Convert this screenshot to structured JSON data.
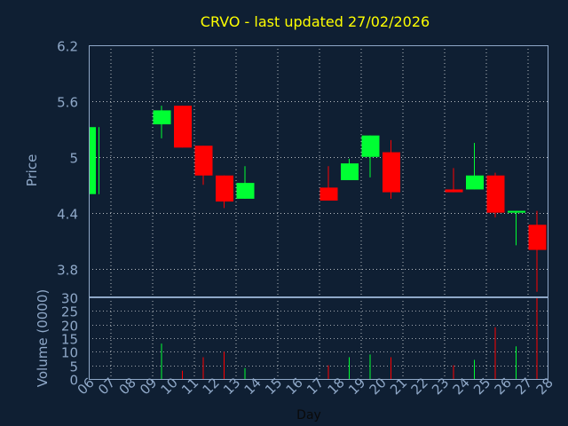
{
  "chart_data": {
    "type": "candlestick",
    "title": "CRVO - last updated 27/02/2026",
    "price_axis": {
      "label": "Price",
      "ylim": [
        3.5,
        6.2
      ],
      "ticks": [
        "6.2",
        "5.6",
        "5",
        "4.4",
        "3.8"
      ],
      "tick_values": [
        6.2,
        5.6,
        5.0,
        4.4,
        3.8
      ]
    },
    "volume_axis": {
      "label": "Volume (0000)",
      "ylim": [
        0,
        30
      ],
      "ticks": [
        "30",
        "25",
        "20",
        "15",
        "10",
        "5",
        "0"
      ],
      "tick_values": [
        30,
        25,
        20,
        15,
        10,
        5,
        0
      ]
    },
    "x_axis": {
      "label": "Day",
      "ticks": [
        "06",
        "07",
        "08",
        "09",
        "10",
        "11",
        "12",
        "13",
        "14",
        "15",
        "16",
        "17",
        "18",
        "19",
        "20",
        "21",
        "22",
        "23",
        "24",
        "25",
        "26",
        "27",
        "28"
      ]
    },
    "grid": true,
    "colors": {
      "background": "#0f1f33",
      "title": "#ffff00",
      "axis_text": "#8fa8c8",
      "up": "#00ff33",
      "down": "#ff0000",
      "grid": "#ffffff",
      "frame": "#8fa8c8"
    },
    "candles": [
      {
        "day": "06",
        "open": 4.6,
        "close": 5.32,
        "high": 5.32,
        "low": 4.6,
        "volume": 0
      },
      {
        "day": "09",
        "open": 5.35,
        "close": 5.5,
        "high": 5.55,
        "low": 5.2,
        "volume": 13
      },
      {
        "day": "10",
        "open": 5.55,
        "close": 5.1,
        "high": 5.55,
        "low": 5.1,
        "volume": 3
      },
      {
        "day": "11",
        "open": 5.12,
        "close": 4.8,
        "high": 5.12,
        "low": 4.7,
        "volume": 8
      },
      {
        "day": "12",
        "open": 4.8,
        "close": 4.52,
        "high": 4.8,
        "low": 4.45,
        "volume": 10
      },
      {
        "day": "13",
        "open": 4.55,
        "close": 4.72,
        "high": 4.9,
        "low": 4.55,
        "volume": 4
      },
      {
        "day": "17",
        "open": 4.67,
        "close": 4.53,
        "high": 4.9,
        "low": 4.53,
        "volume": 5
      },
      {
        "day": "18",
        "open": 4.75,
        "close": 4.93,
        "high": 4.98,
        "low": 4.75,
        "volume": 8
      },
      {
        "day": "19",
        "open": 5.0,
        "close": 5.23,
        "high": 5.23,
        "low": 4.78,
        "volume": 9
      },
      {
        "day": "20",
        "open": 5.05,
        "close": 4.62,
        "high": 5.18,
        "low": 4.55,
        "volume": 8
      },
      {
        "day": "23",
        "open": 4.65,
        "close": 4.62,
        "high": 4.88,
        "low": 4.62,
        "volume": 5
      },
      {
        "day": "24",
        "open": 4.65,
        "close": 4.8,
        "high": 5.15,
        "low": 4.65,
        "volume": 7
      },
      {
        "day": "25",
        "open": 4.8,
        "close": 4.4,
        "high": 4.83,
        "low": 4.35,
        "volume": 19
      },
      {
        "day": "26",
        "open": 4.4,
        "close": 4.42,
        "high": 4.42,
        "low": 4.05,
        "volume": 12
      },
      {
        "day": "27",
        "open": 4.27,
        "close": 4.0,
        "high": 4.42,
        "low": 3.55,
        "volume": 30
      }
    ]
  }
}
